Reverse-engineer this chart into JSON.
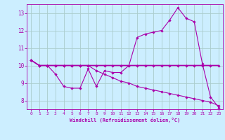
{
  "xlabel": "Windchill (Refroidissement éolien,°C)",
  "bg_color": "#cceeff",
  "grid_color": "#aacccc",
  "line_color": "#aa00aa",
  "xlim": [
    -0.5,
    23.5
  ],
  "ylim": [
    7.5,
    13.5
  ],
  "xticks": [
    0,
    1,
    2,
    3,
    4,
    5,
    6,
    7,
    8,
    9,
    10,
    11,
    12,
    13,
    14,
    15,
    16,
    17,
    18,
    19,
    20,
    21,
    22,
    23
  ],
  "yticks": [
    8,
    9,
    10,
    11,
    12,
    13
  ],
  "line1_x": [
    0,
    1,
    2,
    3,
    4,
    5,
    6,
    7,
    8,
    9,
    10,
    11,
    12,
    13,
    14,
    15,
    16,
    17,
    18,
    19,
    20,
    21,
    22,
    23
  ],
  "line1_y": [
    10.3,
    10.0,
    10.0,
    9.5,
    8.8,
    8.7,
    8.7,
    9.8,
    8.8,
    9.7,
    9.6,
    9.6,
    10.0,
    11.6,
    11.8,
    11.9,
    12.0,
    12.6,
    13.3,
    12.7,
    12.5,
    10.1,
    8.2,
    7.6
  ],
  "line2_x": [
    0,
    1,
    2,
    3,
    4,
    5,
    6,
    7,
    8,
    9,
    10,
    11,
    12,
    13,
    14,
    15,
    16,
    17,
    18,
    19,
    20,
    21,
    22,
    23
  ],
  "line2_y": [
    10.3,
    10.0,
    10.0,
    10.0,
    10.0,
    10.0,
    10.0,
    10.0,
    10.0,
    10.0,
    10.0,
    10.0,
    10.0,
    10.0,
    10.0,
    10.0,
    10.0,
    10.0,
    10.0,
    10.0,
    10.0,
    10.0,
    10.0,
    10.0
  ],
  "line3_x": [
    0,
    1,
    2,
    3,
    4,
    5,
    6,
    7,
    8,
    9,
    10,
    11,
    12,
    13,
    14,
    15,
    16,
    17,
    18,
    19,
    20,
    21,
    22,
    23
  ],
  "line3_y": [
    10.3,
    10.0,
    10.0,
    10.0,
    10.0,
    10.0,
    10.0,
    10.0,
    9.7,
    9.5,
    9.3,
    9.1,
    9.0,
    8.8,
    8.7,
    8.6,
    8.5,
    8.4,
    8.3,
    8.2,
    8.1,
    8.0,
    7.9,
    7.7
  ]
}
